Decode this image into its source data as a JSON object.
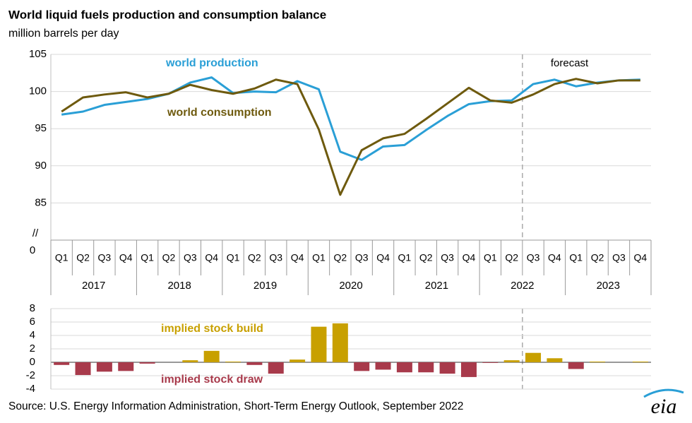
{
  "chart_data": [
    {
      "type": "line",
      "title": "World liquid fuels production and consumption balance",
      "subtitle": "million barrels per day",
      "categories": [
        "Q1",
        "Q2",
        "Q3",
        "Q4",
        "Q1",
        "Q2",
        "Q3",
        "Q4",
        "Q1",
        "Q2",
        "Q3",
        "Q4",
        "Q1",
        "Q2",
        "Q3",
        "Q4",
        "Q1",
        "Q2",
        "Q3",
        "Q4",
        "Q1",
        "Q2",
        "Q3",
        "Q4",
        "Q1",
        "Q2",
        "Q3",
        "Q4"
      ],
      "groups": [
        {
          "label": "2017",
          "span": 4
        },
        {
          "label": "2018",
          "span": 4
        },
        {
          "label": "2019",
          "span": 4
        },
        {
          "label": "2020",
          "span": 4
        },
        {
          "label": "2021",
          "span": 4
        },
        {
          "label": "2022",
          "span": 4
        },
        {
          "label": "2023",
          "span": 4
        }
      ],
      "series": [
        {
          "name": "world production",
          "color": "#2a9fd6",
          "values": [
            96.9,
            97.3,
            98.2,
            98.6,
            99.0,
            99.7,
            101.2,
            101.9,
            99.8,
            100.0,
            99.9,
            101.4,
            100.3,
            91.9,
            90.8,
            92.6,
            92.8,
            94.8,
            96.7,
            98.3,
            98.7,
            98.8,
            101.0,
            101.6,
            100.7,
            101.2,
            101.5,
            101.6
          ]
        },
        {
          "name": "world consumption",
          "color": "#6e5a0e",
          "values": [
            97.3,
            99.2,
            99.6,
            99.9,
            99.2,
            99.7,
            100.9,
            100.2,
            99.7,
            100.4,
            101.6,
            101.0,
            94.9,
            86.1,
            92.1,
            93.7,
            94.3,
            96.3,
            98.4,
            100.5,
            98.8,
            98.5,
            99.6,
            101.0,
            101.7,
            101.1,
            101.5,
            101.5
          ]
        }
      ],
      "ylim": [
        80,
        105
      ],
      "yticks": [
        85,
        90,
        95,
        100,
        105
      ],
      "grid": true,
      "axis_break": {
        "symbol": "//",
        "baseline": 0
      },
      "forecast_label": "forecast",
      "forecast_start": 22
    },
    {
      "type": "bar",
      "annotations": [
        {
          "text": "implied stock  build",
          "color": "#c8a000"
        },
        {
          "text": "implied stock draw",
          "color": "#a83a4b"
        }
      ],
      "positive_color": "#c8a000",
      "negative_color": "#a83a4b",
      "values": [
        -0.4,
        -1.9,
        -1.4,
        -1.3,
        -0.2,
        0.0,
        0.3,
        1.7,
        0.1,
        -0.4,
        -1.7,
        0.4,
        5.3,
        5.8,
        -1.3,
        -1.1,
        -1.5,
        -1.5,
        -1.7,
        -2.2,
        -0.1,
        0.3,
        1.4,
        0.6,
        -1.0,
        0.1,
        0.0,
        0.1
      ],
      "ylim": [
        -4,
        8
      ],
      "yticks": [
        -4,
        -2,
        0,
        2,
        4,
        6,
        8
      ],
      "grid": true
    }
  ],
  "source": "Source: U.S. Energy Information Administration, Short-Term Energy Outlook, September 2022",
  "logo": "eia"
}
